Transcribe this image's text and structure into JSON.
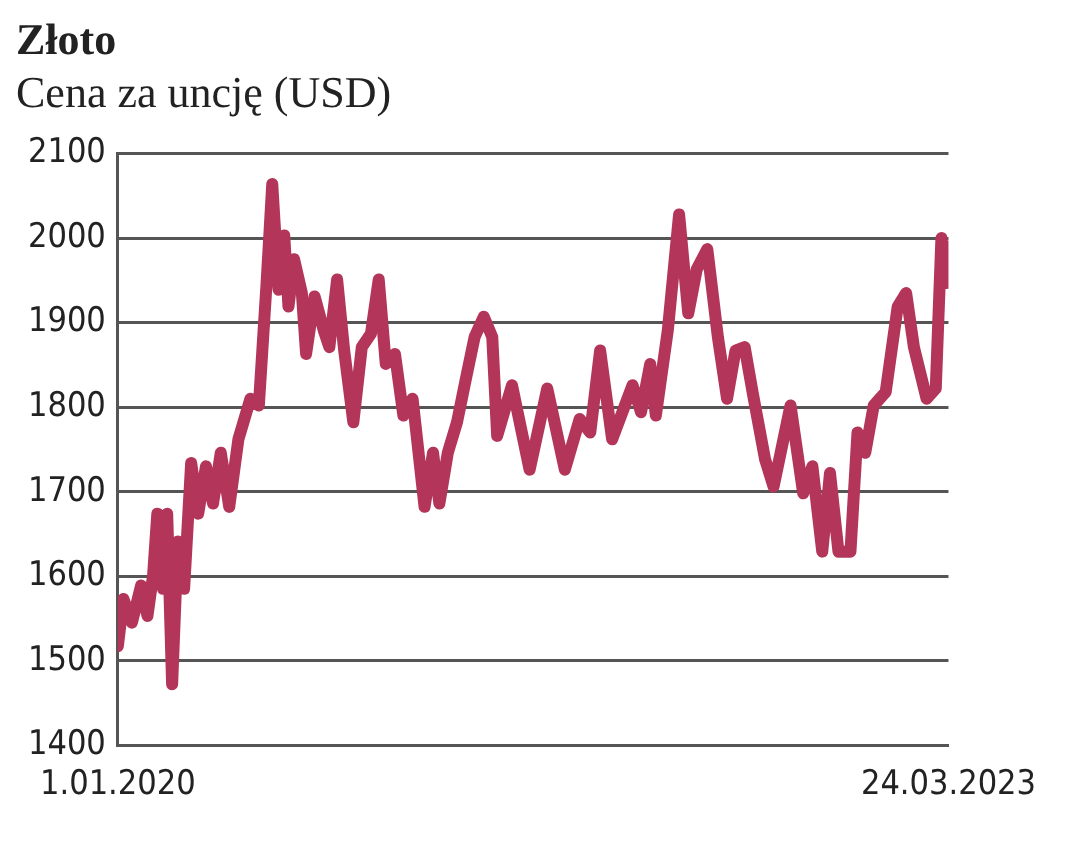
{
  "chart_data": {
    "type": "line",
    "title": "Złoto",
    "subtitle": "Cena za uncję (USD)",
    "x": [
      "2020-01-01",
      "2020-01-09",
      "2020-01-21",
      "2020-02-03",
      "2020-02-12",
      "2020-02-20",
      "2020-02-26",
      "2020-03-05",
      "2020-03-11",
      "2020-03-18",
      "2020-03-26",
      "2020-04-04",
      "2020-04-14",
      "2020-04-24",
      "2020-05-05",
      "2020-05-15",
      "2020-05-26",
      "2020-06-07",
      "2020-06-20",
      "2020-07-07",
      "2020-07-19",
      "2020-07-30",
      "2020-08-07",
      "2020-08-16",
      "2020-08-24",
      "2020-08-30",
      "2020-09-07",
      "2020-09-18",
      "2020-09-24",
      "2020-10-06",
      "2020-10-19",
      "2020-10-27",
      "2020-11-07",
      "2020-11-17",
      "2020-11-30",
      "2020-12-12",
      "2020-12-25",
      "2021-01-05",
      "2021-01-15",
      "2021-01-28",
      "2021-02-09",
      "2021-02-22",
      "2021-03-11",
      "2021-03-23",
      "2021-04-01",
      "2021-04-13",
      "2021-04-26",
      "2021-05-09",
      "2021-05-21",
      "2021-06-03",
      "2021-06-15",
      "2021-06-22",
      "2021-07-13",
      "2021-08-07",
      "2021-09-01",
      "2021-09-26",
      "2021-10-17",
      "2021-11-01",
      "2021-11-15",
      "2021-12-02",
      "2021-12-31",
      "2022-01-12",
      "2022-01-25",
      "2022-02-02",
      "2022-02-19",
      "2022-03-07",
      "2022-03-20",
      "2022-04-01",
      "2022-04-16",
      "2022-05-01",
      "2022-05-14",
      "2022-05-26",
      "2022-06-08",
      "2022-06-20",
      "2022-07-07",
      "2022-07-19",
      "2022-08-12",
      "2022-08-30",
      "2022-09-12",
      "2022-09-26",
      "2022-10-07",
      "2022-10-19",
      "2022-11-05",
      "2022-11-15",
      "2022-11-26",
      "2022-12-08",
      "2022-12-25",
      "2023-01-11",
      "2023-01-23",
      "2023-02-03",
      "2023-02-21",
      "2023-03-06",
      "2023-03-14",
      "2023-03-22",
      "2023-03-24"
    ],
    "series": [
      {
        "color": "#b3365a",
        "values": [
          1517,
          1573,
          1545,
          1589,
          1553,
          1601,
          1674,
          1585,
          1674,
          1472,
          1641,
          1585,
          1734,
          1674,
          1730,
          1686,
          1746,
          1682,
          1762,
          1810,
          1802,
          1947,
          2064,
          1939,
          2003,
          1919,
          1975,
          1935,
          1863,
          1931,
          1891,
          1871,
          1951,
          1867,
          1782,
          1871,
          1887,
          1951,
          1851,
          1863,
          1790,
          1810,
          1682,
          1746,
          1686,
          1746,
          1782,
          1835,
          1883,
          1907,
          1883,
          1766,
          1826,
          1726,
          1822,
          1726,
          1786,
          1770,
          1867,
          1762,
          1826,
          1794,
          1851,
          1790,
          1891,
          2028,
          1911,
          1963,
          1987,
          1883,
          1810,
          1867,
          1871,
          1814,
          1738,
          1706,
          1802,
          1698,
          1730,
          1629,
          1722,
          1629,
          1629,
          1770,
          1746,
          1802,
          1818,
          1919,
          1935,
          1871,
          1810,
          1822,
          2000,
          1947,
          1990
        ]
      }
    ],
    "xlim": [
      "2020-01-01",
      "2023-03-24"
    ],
    "xticks": [
      {
        "value": "2020-01-01",
        "label": "1.01.2020"
      },
      {
        "value": "2023-03-24",
        "label": "24.03.2023"
      }
    ],
    "ylim": [
      1400,
      2100
    ],
    "yticks": [
      1400,
      1500,
      1600,
      1700,
      1800,
      1900,
      2000,
      2100
    ],
    "grid": "y",
    "legend": false,
    "marker": "none",
    "line_style": "solid"
  }
}
